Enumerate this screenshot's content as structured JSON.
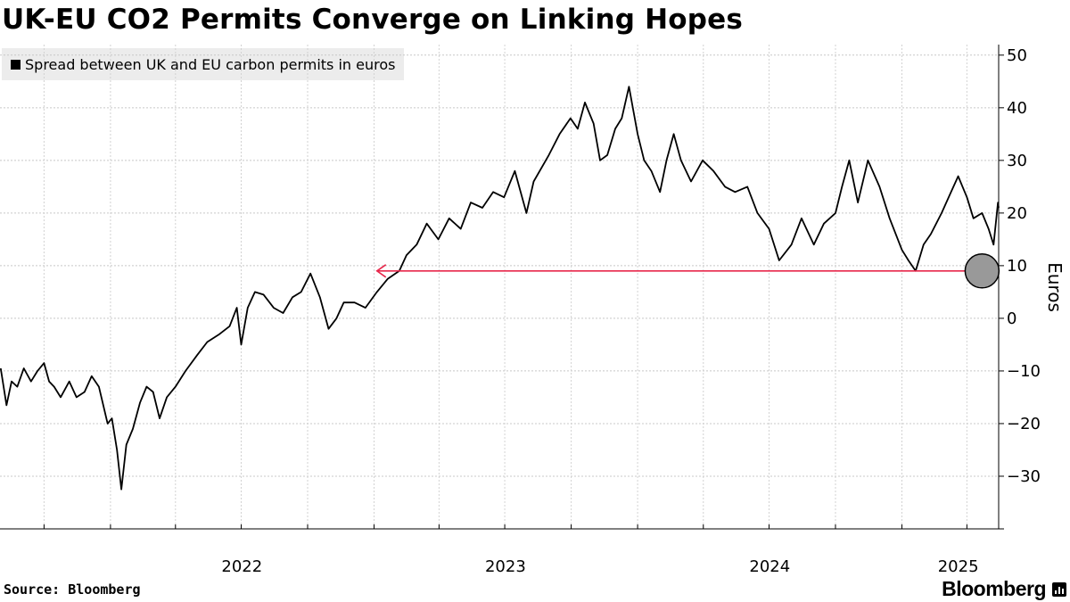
{
  "chart_data": {
    "type": "line",
    "title": "UK-EU CO2 Permits Converge on Linking Hopes",
    "ylabel": "Euros",
    "xlabel": "",
    "ylim": [
      -40,
      52
    ],
    "yticks": [
      -30,
      -20,
      -10,
      0,
      10,
      20,
      30,
      40,
      50
    ],
    "ytick_labels": [
      "−30",
      "−20",
      "−10",
      "0",
      "10",
      "20",
      "30",
      "40",
      "50"
    ],
    "xlim": [
      "2021-08-01",
      "2025-05-15"
    ],
    "x_tick_labels": [
      {
        "label": "2022",
        "date": "2022-07-02"
      },
      {
        "label": "2023",
        "date": "2023-07-02"
      },
      {
        "label": "2024",
        "date": "2024-07-02"
      },
      {
        "label": "2025",
        "date": "2025-03-20"
      }
    ],
    "grid": true,
    "legend_position": "top-left",
    "colors": {
      "series": "#000000",
      "annotation": "#e8274b",
      "marker": "#999999"
    },
    "series": [
      {
        "name": "Spread between UK and EU carbon permits in euros",
        "points": [
          [
            "2021-08-02",
            -9.5
          ],
          [
            "2021-08-10",
            -16.5
          ],
          [
            "2021-08-17",
            -12
          ],
          [
            "2021-08-25",
            -13
          ],
          [
            "2021-09-03",
            -9.5
          ],
          [
            "2021-09-13",
            -12
          ],
          [
            "2021-09-22",
            -10
          ],
          [
            "2021-10-01",
            -8.5
          ],
          [
            "2021-10-08",
            -12
          ],
          [
            "2021-10-15",
            -13
          ],
          [
            "2021-10-24",
            -15
          ],
          [
            "2021-11-05",
            -12
          ],
          [
            "2021-11-15",
            -15
          ],
          [
            "2021-11-26",
            -14
          ],
          [
            "2021-12-06",
            -11
          ],
          [
            "2021-12-16",
            -13
          ],
          [
            "2021-12-28",
            -20
          ],
          [
            "2022-01-03",
            -19
          ],
          [
            "2022-01-10",
            -25
          ],
          [
            "2022-01-16",
            -32.5
          ],
          [
            "2022-01-23",
            -24
          ],
          [
            "2022-02-01",
            -21
          ],
          [
            "2022-02-11",
            -16
          ],
          [
            "2022-02-20",
            -13
          ],
          [
            "2022-03-01",
            -14
          ],
          [
            "2022-03-10",
            -19
          ],
          [
            "2022-03-20",
            -15
          ],
          [
            "2022-04-01",
            -13
          ],
          [
            "2022-04-15",
            -10
          ],
          [
            "2022-05-01",
            -7
          ],
          [
            "2022-05-15",
            -4.5
          ],
          [
            "2022-06-01",
            -3
          ],
          [
            "2022-06-15",
            -1.5
          ],
          [
            "2022-06-25",
            2
          ],
          [
            "2022-07-01",
            -5
          ],
          [
            "2022-07-10",
            2
          ],
          [
            "2022-07-20",
            5
          ],
          [
            "2022-08-01",
            4.5
          ],
          [
            "2022-08-15",
            2
          ],
          [
            "2022-08-28",
            1
          ],
          [
            "2022-09-10",
            4
          ],
          [
            "2022-09-22",
            5
          ],
          [
            "2022-10-05",
            8.5
          ],
          [
            "2022-10-18",
            4
          ],
          [
            "2022-10-30",
            -2
          ],
          [
            "2022-11-10",
            0
          ],
          [
            "2022-11-20",
            3
          ],
          [
            "2022-12-05",
            3
          ],
          [
            "2022-12-20",
            2
          ],
          [
            "2023-01-05",
            5
          ],
          [
            "2023-01-20",
            7.5
          ],
          [
            "2023-02-05",
            9
          ],
          [
            "2023-02-15",
            12
          ],
          [
            "2023-03-01",
            14
          ],
          [
            "2023-03-15",
            18
          ],
          [
            "2023-03-31",
            15
          ],
          [
            "2023-04-15",
            19
          ],
          [
            "2023-05-01",
            17
          ],
          [
            "2023-05-15",
            22
          ],
          [
            "2023-05-31",
            21
          ],
          [
            "2023-06-15",
            24
          ],
          [
            "2023-06-30",
            23
          ],
          [
            "2023-07-15",
            28
          ],
          [
            "2023-07-31",
            20
          ],
          [
            "2023-08-10",
            26
          ],
          [
            "2023-08-31",
            31
          ],
          [
            "2023-09-15",
            35
          ],
          [
            "2023-09-30",
            38
          ],
          [
            "2023-10-10",
            36
          ],
          [
            "2023-10-20",
            41
          ],
          [
            "2023-11-01",
            37
          ],
          [
            "2023-11-10",
            30
          ],
          [
            "2023-11-20",
            31
          ],
          [
            "2023-12-01",
            36
          ],
          [
            "2023-12-10",
            38
          ],
          [
            "2023-12-20",
            44
          ],
          [
            "2024-01-01",
            35
          ],
          [
            "2024-01-10",
            30
          ],
          [
            "2024-01-20",
            28
          ],
          [
            "2024-02-01",
            24
          ],
          [
            "2024-02-10",
            30
          ],
          [
            "2024-02-20",
            35
          ],
          [
            "2024-03-01",
            30
          ],
          [
            "2024-03-15",
            26
          ],
          [
            "2024-03-31",
            30
          ],
          [
            "2024-04-15",
            28
          ],
          [
            "2024-05-01",
            25
          ],
          [
            "2024-05-15",
            24
          ],
          [
            "2024-06-01",
            25
          ],
          [
            "2024-06-15",
            20
          ],
          [
            "2024-07-01",
            17
          ],
          [
            "2024-07-15",
            11
          ],
          [
            "2024-08-01",
            14
          ],
          [
            "2024-08-15",
            19
          ],
          [
            "2024-09-01",
            14
          ],
          [
            "2024-09-15",
            18
          ],
          [
            "2024-10-01",
            20
          ],
          [
            "2024-10-10",
            25
          ],
          [
            "2024-10-20",
            30
          ],
          [
            "2024-11-01",
            22
          ],
          [
            "2024-11-15",
            30
          ],
          [
            "2024-12-01",
            25
          ],
          [
            "2024-12-15",
            19
          ],
          [
            "2025-01-01",
            13
          ],
          [
            "2025-01-10",
            11
          ],
          [
            "2025-01-20",
            9
          ],
          [
            "2025-01-31",
            14
          ],
          [
            "2025-02-10",
            16
          ],
          [
            "2025-02-25",
            20
          ],
          [
            "2025-03-10",
            24
          ],
          [
            "2025-03-20",
            27
          ],
          [
            "2025-04-01",
            23
          ],
          [
            "2025-04-10",
            19
          ],
          [
            "2025-04-22",
            20
          ],
          [
            "2025-05-01",
            17
          ],
          [
            "2025-05-08",
            14
          ],
          [
            "2025-05-14",
            22
          ],
          [
            "2025-05-15",
            21
          ]
        ]
      }
    ],
    "annotations": [
      {
        "type": "arrow",
        "from_date": "2025-04-22",
        "to_date": "2023-01-05",
        "value": 9
      },
      {
        "type": "circle",
        "date": "2025-04-22",
        "value": 9
      }
    ]
  },
  "footer": {
    "source": "Source: Bloomberg",
    "brand": "Bloomberg"
  }
}
